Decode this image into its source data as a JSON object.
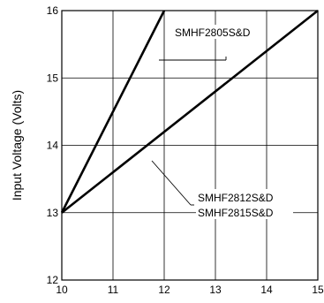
{
  "chart_data": {
    "type": "line",
    "title": "",
    "xlabel": "",
    "ylabel": "Input Voltage (Volts)",
    "xlim": [
      10,
      15
    ],
    "ylim": [
      12,
      16
    ],
    "x_ticks": [
      "10",
      "11",
      "12",
      "13",
      "14",
      "15"
    ],
    "y_ticks": [
      "12",
      "13",
      "14",
      "15",
      "16"
    ],
    "grid": true,
    "series": [
      {
        "x": [
          10,
          12
        ],
        "y": [
          13,
          16
        ]
      },
      {
        "x": [
          10,
          15
        ],
        "y": [
          13,
          16
        ]
      }
    ],
    "annotations": [
      {
        "text": "SMHF2805S&D"
      },
      {
        "text": "SMHF2812S&D"
      },
      {
        "text": "SMHF2815S&D"
      }
    ],
    "colors": {
      "line": "#000000",
      "grid": "#000000"
    }
  }
}
